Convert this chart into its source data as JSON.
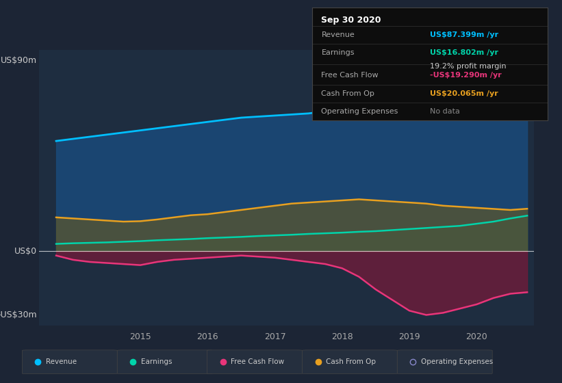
{
  "bg_color": "#1c2535",
  "plot_bg": "#1e2d40",
  "ylabel_top": "US$90m",
  "ylabel_mid": "US$0",
  "ylabel_bot": "-US$30m",
  "ylim": [
    -35,
    95
  ],
  "xlim": [
    2013.5,
    2020.85
  ],
  "xticks": [
    2015,
    2016,
    2017,
    2018,
    2019,
    2020
  ],
  "revenue_color": "#00bfff",
  "earnings_color": "#00d4aa",
  "fcf_color": "#e8357a",
  "cashop_color": "#e8a020",
  "opex_color": "#8888cc",
  "revenue_fill": "#1a4a7a",
  "earnings_fill": "#1a6060",
  "fcf_fill": "#7a1a3a",
  "cashop_fill": "#555533",
  "info_box": {
    "title": "Sep 30 2020",
    "rows": [
      {
        "label": "Revenue",
        "value": "US$87.399m /yr",
        "color": "#00bfff"
      },
      {
        "label": "Earnings",
        "value": "US$16.802m /yr",
        "color": "#00d4aa"
      },
      {
        "label": "",
        "value": "19.2% profit margin",
        "color": "#cccccc"
      },
      {
        "label": "Free Cash Flow",
        "value": "-US$19.290m /yr",
        "color": "#e8357a"
      },
      {
        "label": "Cash From Op",
        "value": "US$20.065m /yr",
        "color": "#e8a020"
      },
      {
        "label": "Operating Expenses",
        "value": "No data",
        "color": "#888888"
      }
    ]
  },
  "revenue": {
    "x": [
      2013.75,
      2014.0,
      2014.25,
      2014.5,
      2014.75,
      2015.0,
      2015.25,
      2015.5,
      2015.75,
      2016.0,
      2016.25,
      2016.5,
      2016.75,
      2017.0,
      2017.25,
      2017.5,
      2017.75,
      2018.0,
      2018.25,
      2018.5,
      2018.75,
      2019.0,
      2019.25,
      2019.5,
      2019.75,
      2020.0,
      2020.25,
      2020.5,
      2020.75
    ],
    "y": [
      52,
      53,
      54,
      55,
      56,
      57,
      58,
      59,
      60,
      61,
      62,
      63,
      63.5,
      64,
      64.5,
      65,
      66,
      67,
      68,
      69,
      70,
      71,
      72,
      73,
      74,
      76,
      79,
      83,
      87.4
    ]
  },
  "earnings": {
    "x": [
      2013.75,
      2014.0,
      2014.25,
      2014.5,
      2014.75,
      2015.0,
      2015.25,
      2015.5,
      2015.75,
      2016.0,
      2016.25,
      2016.5,
      2016.75,
      2017.0,
      2017.25,
      2017.5,
      2017.75,
      2018.0,
      2018.25,
      2018.5,
      2018.75,
      2019.0,
      2019.25,
      2019.5,
      2019.75,
      2020.0,
      2020.25,
      2020.5,
      2020.75
    ],
    "y": [
      3.5,
      3.8,
      4.0,
      4.2,
      4.5,
      4.8,
      5.2,
      5.5,
      5.8,
      6.2,
      6.5,
      6.8,
      7.2,
      7.5,
      7.8,
      8.2,
      8.5,
      8.8,
      9.2,
      9.5,
      10.0,
      10.5,
      11.0,
      11.5,
      12.0,
      13.0,
      14.0,
      15.5,
      16.8
    ]
  },
  "cashop": {
    "x": [
      2013.75,
      2014.0,
      2014.25,
      2014.5,
      2014.75,
      2015.0,
      2015.25,
      2015.5,
      2015.75,
      2016.0,
      2016.25,
      2016.5,
      2016.75,
      2017.0,
      2017.25,
      2017.5,
      2017.75,
      2018.0,
      2018.25,
      2018.5,
      2018.75,
      2019.0,
      2019.25,
      2019.5,
      2019.75,
      2020.0,
      2020.25,
      2020.5,
      2020.75
    ],
    "y": [
      16,
      15.5,
      15,
      14.5,
      14,
      14.2,
      15,
      16,
      17,
      17.5,
      18.5,
      19.5,
      20.5,
      21.5,
      22.5,
      23,
      23.5,
      24,
      24.5,
      24,
      23.5,
      23,
      22.5,
      21.5,
      21,
      20.5,
      20,
      19.5,
      20.065
    ]
  },
  "fcf": {
    "x": [
      2013.75,
      2014.0,
      2014.25,
      2014.5,
      2014.75,
      2015.0,
      2015.25,
      2015.5,
      2015.75,
      2016.0,
      2016.25,
      2016.5,
      2016.75,
      2017.0,
      2017.25,
      2017.5,
      2017.75,
      2018.0,
      2018.25,
      2018.5,
      2018.75,
      2019.0,
      2019.25,
      2019.5,
      2019.75,
      2020.0,
      2020.25,
      2020.5,
      2020.75
    ],
    "y": [
      -2,
      -4,
      -5,
      -5.5,
      -6,
      -6.5,
      -5,
      -4,
      -3.5,
      -3,
      -2.5,
      -2,
      -2.5,
      -3,
      -4,
      -5,
      -6,
      -8,
      -12,
      -18,
      -23,
      -28,
      -30,
      -29,
      -27,
      -25,
      -22,
      -20,
      -19.3
    ]
  },
  "legend": [
    {
      "label": "Revenue",
      "color": "#00bfff",
      "filled": true
    },
    {
      "label": "Earnings",
      "color": "#00d4aa",
      "filled": true
    },
    {
      "label": "Free Cash Flow",
      "color": "#e8357a",
      "filled": true
    },
    {
      "label": "Cash From Op",
      "color": "#e8a020",
      "filled": true
    },
    {
      "label": "Operating Expenses",
      "color": "#8888cc",
      "filled": false
    }
  ]
}
